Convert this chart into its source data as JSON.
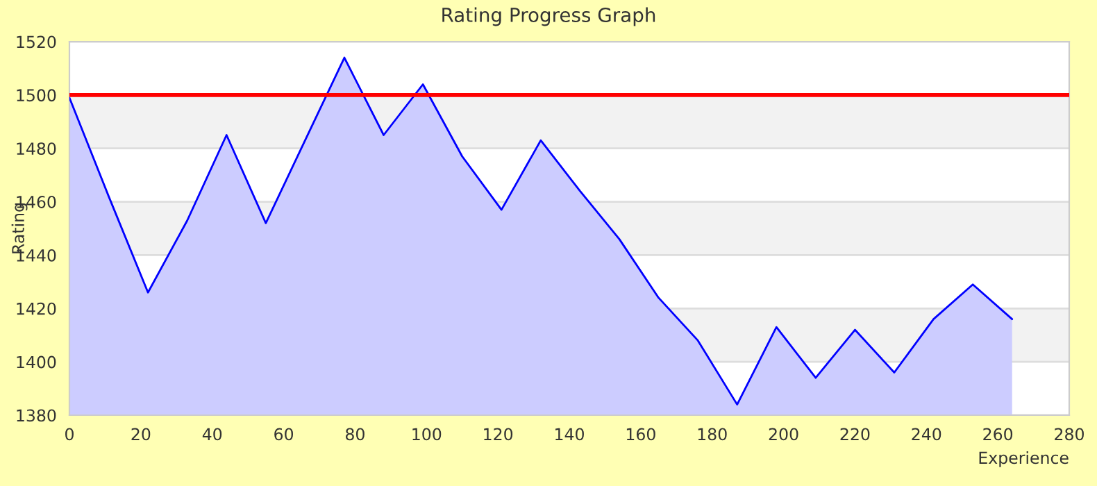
{
  "chart_data": {
    "type": "area",
    "title": "Rating Progress Graph",
    "xlabel": "Experience",
    "ylabel": "Rating",
    "x": [
      0,
      11,
      22,
      33,
      44,
      55,
      66,
      77,
      88,
      99,
      110,
      121,
      132,
      143,
      154,
      165,
      176,
      187,
      198,
      209,
      220,
      231,
      242,
      253,
      264
    ],
    "series": [
      {
        "color": "#0000ff",
        "values": [
          1499,
          1462,
          1426,
          1453,
          1485,
          1452,
          1483,
          1514,
          1485,
          1504,
          1477,
          1457,
          1483,
          1464,
          1446,
          1424,
          1408,
          1384,
          1413,
          1394,
          1412,
          1396,
          1416,
          1429,
          1416
        ]
      }
    ],
    "xlim": [
      0,
      280
    ],
    "xticks": [
      0,
      20,
      40,
      60,
      80,
      100,
      120,
      140,
      160,
      180,
      200,
      220,
      240,
      260,
      280
    ],
    "ylim": [
      1380,
      1520
    ],
    "yticks": [
      1380,
      1400,
      1420,
      1440,
      1460,
      1480,
      1500,
      1520
    ],
    "grid": "y",
    "bands": [
      {
        "axis": "y",
        "from": 1400,
        "to": 1420,
        "color": "#f2f2f2"
      },
      {
        "axis": "y",
        "from": 1440,
        "to": 1460,
        "color": "#f2f2f2"
      },
      {
        "axis": "y",
        "from": 1480,
        "to": 1500,
        "color": "#f2f2f2"
      }
    ],
    "ref_lines": [
      {
        "axis": "y",
        "value": 1500,
        "color": "#ff0000"
      }
    ]
  }
}
